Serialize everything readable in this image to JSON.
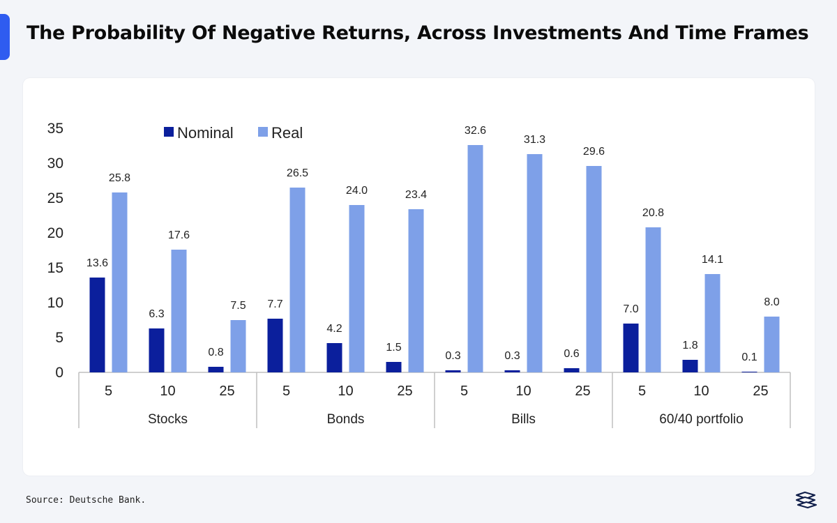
{
  "header": {
    "title": "The Probability Of Negative Returns, Across Investments And Time Frames"
  },
  "footer": {
    "source": "Source: Deutsche Bank."
  },
  "colors": {
    "accent": "#2f5cf0",
    "nominal": "#0b1f9c",
    "real": "#7ea0e8"
  },
  "chart_data": {
    "type": "bar",
    "title": "",
    "xlabel": "",
    "ylabel": "",
    "ylim": [
      0,
      35
    ],
    "yticks": [
      0,
      5,
      10,
      15,
      20,
      25,
      30,
      35
    ],
    "grid": false,
    "legend_position": "top-left",
    "groups": [
      {
        "name": "Stocks",
        "categories": [
          "5",
          "10",
          "25"
        ]
      },
      {
        "name": "Bonds",
        "categories": [
          "5",
          "10",
          "25"
        ]
      },
      {
        "name": "Bills",
        "categories": [
          "5",
          "10",
          "25"
        ]
      },
      {
        "name": "60/40 portfolio",
        "categories": [
          "5",
          "10",
          "25"
        ]
      }
    ],
    "series": [
      {
        "name": "Nominal",
        "color": "#0b1f9c",
        "values": [
          13.6,
          6.3,
          0.8,
          7.7,
          4.2,
          1.5,
          0.3,
          0.3,
          0.6,
          7.0,
          1.8,
          0.1
        ],
        "labels": [
          "13.6",
          "6.3",
          "0.8",
          "7.7",
          "4.2",
          "1.5",
          "0.3",
          "0.3",
          "0.6",
          "7.0",
          "1.8",
          "0.1"
        ]
      },
      {
        "name": "Real",
        "color": "#7ea0e8",
        "values": [
          25.8,
          17.6,
          7.5,
          26.5,
          24.0,
          23.4,
          32.6,
          31.3,
          29.6,
          20.8,
          14.1,
          8.0
        ],
        "labels": [
          "25.8",
          "17.6",
          "7.5",
          "26.5",
          "24.0",
          "23.4",
          "32.6",
          "31.3",
          "29.6",
          "20.8",
          "14.1",
          "8.0"
        ]
      }
    ]
  }
}
